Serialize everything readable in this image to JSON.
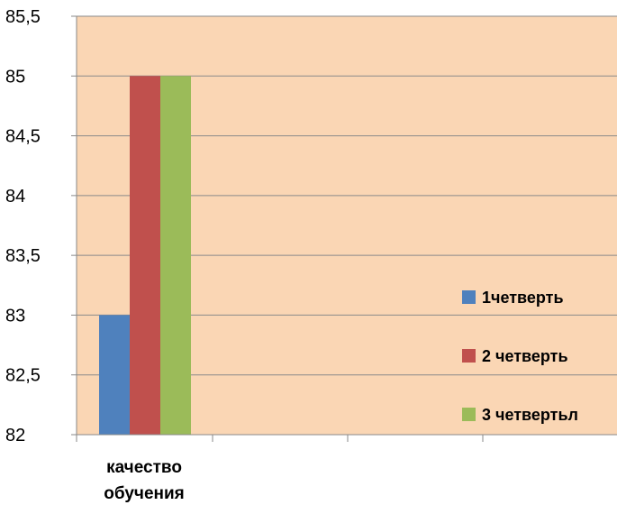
{
  "chart_data": {
    "type": "bar",
    "categories": [
      "качество обучения"
    ],
    "category_lines": [
      [
        "качество",
        "обучения"
      ]
    ],
    "series": [
      {
        "name": "1четверть",
        "values": [
          83
        ],
        "color": "#4F81BD"
      },
      {
        "name": "2 четверть",
        "values": [
          85
        ],
        "color": "#C0504D"
      },
      {
        "name": "3 четвертьл",
        "values": [
          85
        ],
        "color": "#9BBB59"
      }
    ],
    "ylim": [
      82,
      85.5
    ],
    "yticks": [
      "82",
      "82,5",
      "83",
      "83,5",
      "84",
      "84,5",
      "85",
      "85,5"
    ],
    "grid": true,
    "legend_position": "right",
    "plot_background": "#FAD6B4"
  }
}
